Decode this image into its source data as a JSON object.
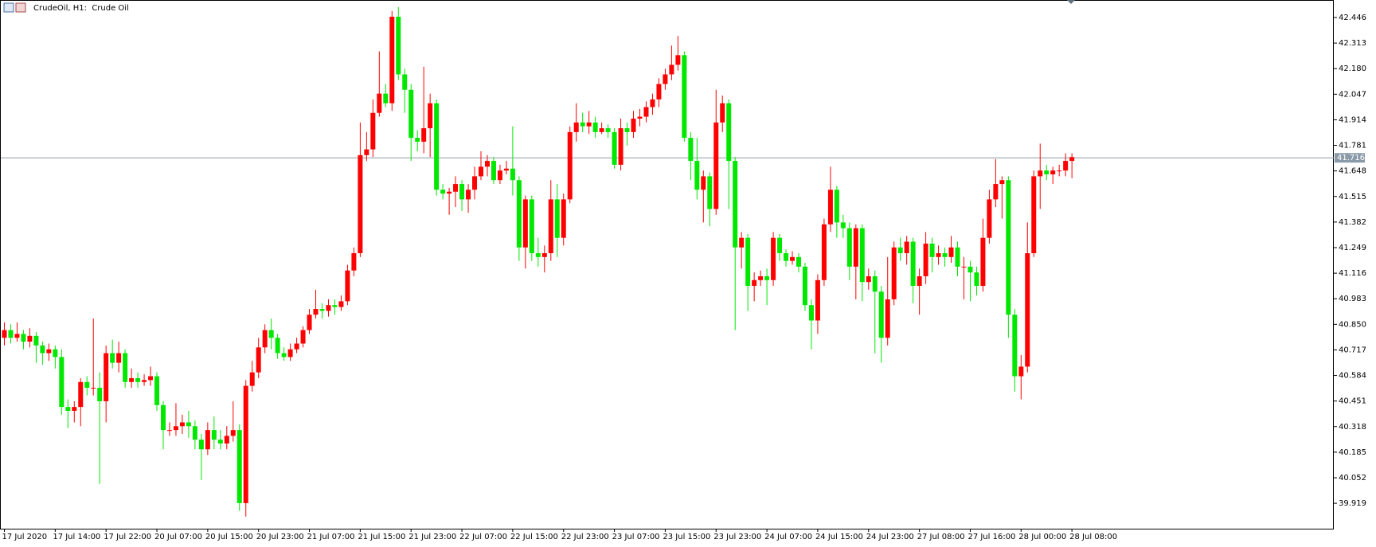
{
  "chart_data": {
    "type": "candlestick",
    "title": "CrudeOil, H1:  Crude Oil",
    "categories": [
      "17 Jul 2020",
      null,
      null,
      null,
      null,
      null,
      null,
      null,
      "17 Jul 14:00",
      null,
      null,
      null,
      null,
      null,
      null,
      null,
      "17 Jul 22:00",
      null,
      null,
      null,
      null,
      null,
      null,
      null,
      "20 Jul 07:00",
      null,
      null,
      null,
      null,
      null,
      null,
      null,
      "20 Jul 15:00",
      null,
      null,
      null,
      null,
      null,
      null,
      null,
      "20 Jul 23:00",
      null,
      null,
      null,
      null,
      null,
      null,
      null,
      "21 Jul 07:00",
      null,
      null,
      null,
      null,
      null,
      null,
      null,
      "21 Jul 15:00",
      null,
      null,
      null,
      null,
      null,
      null,
      null,
      "21 Jul 23:00",
      null,
      null,
      null,
      null,
      null,
      null,
      null,
      "22 Jul 07:00",
      null,
      null,
      null,
      null,
      null,
      null,
      null,
      "22 Jul 15:00",
      null,
      null,
      null,
      null,
      null,
      null,
      null,
      "22 Jul 23:00",
      null,
      null,
      null,
      null,
      null,
      null,
      null,
      "23 Jul 07:00",
      null,
      null,
      null,
      null,
      null,
      null,
      null,
      "23 Jul 15:00",
      null,
      null,
      null,
      null,
      null,
      null,
      null,
      "23 Jul 23:00",
      null,
      null,
      null,
      null,
      null,
      null,
      null,
      "24 Jul 07:00",
      null,
      null,
      null,
      null,
      null,
      null,
      null,
      "24 Jul 15:00",
      null,
      null,
      null,
      null,
      null,
      null,
      null,
      "24 Jul 23:00",
      null,
      null,
      null,
      null,
      null,
      null,
      null,
      "27 Jul 08:00",
      null,
      null,
      null,
      null,
      null,
      null,
      null,
      "27 Jul 16:00",
      null,
      null,
      null,
      null,
      null,
      null,
      null,
      "28 Jul 00:00",
      null,
      null,
      null,
      null,
      null,
      null,
      null,
      "28 Jul 08:00"
    ],
    "open": [
      40.78,
      40.82,
      40.78,
      40.8,
      40.76,
      40.79,
      40.74,
      40.7,
      40.72,
      40.68,
      40.42,
      40.4,
      40.42,
      40.55,
      40.52,
      40.52,
      40.45,
      40.7,
      40.65,
      40.7,
      40.55,
      40.57,
      40.55,
      40.56,
      40.58,
      40.43,
      40.3,
      40.3,
      40.32,
      40.34,
      40.32,
      40.25,
      40.2,
      40.3,
      40.25,
      40.23,
      40.27,
      40.3,
      39.92,
      40.53,
      40.6,
      40.73,
      40.82,
      40.78,
      40.7,
      40.68,
      40.72,
      40.75,
      40.82,
      40.9,
      40.93,
      40.92,
      40.95,
      40.94,
      40.97,
      41.13,
      41.22,
      41.73,
      41.76,
      41.95,
      42.05,
      42.0,
      42.45,
      42.15,
      42.07,
      41.82,
      41.8,
      41.87,
      42.0,
      41.55,
      41.53,
      41.54,
      41.58,
      41.5,
      41.55,
      41.62,
      41.67,
      41.7,
      41.6,
      41.65,
      41.66,
      41.6,
      41.25,
      41.5,
      41.22,
      41.2,
      41.22,
      41.5,
      41.3,
      41.5,
      41.85,
      41.9,
      41.88,
      41.9,
      41.85,
      41.87,
      41.85,
      41.68,
      41.87,
      41.85,
      41.92,
      41.93,
      41.98,
      42.02,
      42.1,
      42.15,
      42.2,
      42.25,
      41.82,
      41.7,
      41.55,
      41.62,
      41.45,
      41.9,
      42.0,
      41.7,
      41.25,
      41.3,
      41.05,
      41.08,
      41.1,
      41.08,
      41.3,
      41.22,
      41.18,
      41.2,
      41.15,
      40.95,
      40.87,
      41.08,
      41.37,
      41.55,
      41.38,
      41.35,
      41.15,
      41.35,
      41.07,
      41.1,
      41.02,
      40.78,
      40.98,
      41.25,
      41.22,
      41.28,
      41.05,
      41.1,
      41.27,
      41.2,
      41.22,
      41.2,
      41.25,
      41.15,
      41.15,
      41.12,
      41.05,
      41.3,
      41.5,
      41.58,
      41.6,
      40.9,
      40.58,
      40.63,
      41.22,
      41.62,
      41.65,
      41.63,
      41.65,
      41.65,
      41.7
    ],
    "high": [
      40.86,
      40.85,
      40.86,
      40.82,
      40.83,
      40.81,
      40.76,
      40.75,
      40.74,
      40.72,
      40.46,
      40.45,
      40.57,
      40.58,
      40.88,
      40.6,
      40.74,
      40.77,
      40.76,
      40.72,
      40.62,
      40.6,
      40.59,
      40.63,
      40.6,
      40.45,
      40.34,
      40.44,
      40.38,
      40.4,
      40.35,
      40.28,
      40.34,
      40.37,
      40.3,
      40.32,
      40.45,
      40.33,
      40.56,
      40.66,
      40.78,
      40.85,
      40.88,
      40.8,
      40.73,
      40.75,
      40.78,
      40.84,
      40.93,
      41.03,
      40.96,
      40.98,
      40.98,
      41.0,
      41.16,
      41.25,
      41.9,
      41.85,
      42.02,
      42.27,
      42.1,
      42.48,
      42.5,
      42.18,
      42.1,
      41.86,
      42.19,
      42.05,
      42.02,
      41.58,
      41.56,
      41.62,
      41.6,
      41.58,
      41.67,
      41.75,
      41.73,
      41.72,
      41.68,
      41.7,
      41.88,
      41.62,
      41.52,
      41.52,
      41.3,
      41.26,
      41.6,
      41.58,
      41.53,
      41.88,
      42.0,
      41.95,
      41.96,
      41.93,
      41.9,
      41.89,
      41.87,
      41.92,
      41.9,
      41.96,
      41.97,
      42.01,
      42.05,
      42.13,
      42.18,
      42.3,
      42.35,
      42.27,
      41.85,
      41.82,
      41.65,
      41.64,
      42.07,
      42.04,
      42.02,
      41.72,
      41.33,
      41.32,
      41.12,
      41.13,
      41.14,
      41.33,
      41.32,
      41.24,
      41.23,
      41.22,
      41.17,
      40.98,
      41.11,
      41.4,
      41.67,
      41.57,
      41.42,
      41.38,
      41.37,
      41.37,
      41.14,
      41.13,
      41.05,
      41.2,
      41.28,
      41.3,
      41.31,
      41.3,
      41.14,
      41.33,
      41.3,
      41.26,
      41.25,
      41.31,
      41.28,
      41.2,
      41.18,
      41.15,
      41.4,
      41.55,
      41.71,
      41.62,
      41.62,
      40.93,
      40.69,
      41.38,
      41.65,
      41.79,
      41.68,
      41.67,
      41.68,
      41.74,
      41.74
    ],
    "low": [
      40.74,
      40.75,
      40.76,
      40.72,
      40.73,
      40.65,
      40.64,
      40.66,
      40.62,
      40.38,
      40.31,
      40.34,
      40.32,
      40.48,
      40.48,
      40.02,
      40.34,
      40.62,
      40.6,
      40.52,
      40.52,
      40.52,
      40.53,
      40.53,
      40.4,
      40.2,
      40.27,
      40.27,
      40.28,
      40.26,
      40.2,
      40.04,
      40.17,
      40.2,
      40.2,
      40.2,
      40.24,
      39.88,
      39.85,
      40.5,
      40.57,
      40.7,
      40.72,
      40.67,
      40.66,
      40.66,
      40.7,
      40.73,
      40.8,
      40.88,
      40.88,
      40.89,
      40.9,
      40.92,
      40.95,
      41.1,
      41.2,
      41.7,
      41.72,
      41.93,
      41.98,
      41.96,
      42.12,
      41.95,
      41.7,
      41.75,
      41.74,
      41.72,
      41.52,
      41.5,
      41.42,
      41.46,
      41.44,
      41.43,
      41.5,
      41.6,
      41.62,
      41.58,
      41.58,
      41.63,
      41.52,
      41.18,
      41.14,
      41.18,
      41.15,
      41.12,
      41.18,
      41.2,
      41.26,
      41.48,
      41.8,
      41.85,
      41.84,
      41.82,
      41.84,
      41.82,
      41.66,
      41.65,
      41.78,
      41.82,
      41.88,
      41.9,
      41.94,
      41.98,
      42.07,
      42.12,
      42.17,
      41.8,
      41.6,
      41.5,
      41.38,
      41.36,
      41.42,
      41.85,
      41.45,
      40.82,
      41.14,
      40.92,
      40.97,
      41.05,
      40.95,
      41.05,
      41.18,
      41.15,
      41.16,
      41.12,
      40.92,
      40.72,
      40.8,
      41.05,
      41.33,
      41.3,
      41.3,
      41.08,
      40.98,
      40.97,
      41.03,
      40.7,
      40.65,
      40.74,
      40.95,
      41.18,
      41.16,
      40.96,
      40.9,
      41.06,
      41.12,
      41.16,
      41.15,
      41.17,
      41.1,
      40.98,
      40.97,
      41.0,
      41.02,
      41.27,
      41.46,
      41.4,
      40.78,
      40.5,
      40.46,
      40.6,
      41.2,
      41.45,
      41.6,
      41.58,
      41.62,
      41.62,
      41.61
    ],
    "close": [
      40.82,
      40.78,
      40.8,
      40.76,
      40.79,
      40.74,
      40.7,
      40.72,
      40.68,
      40.42,
      40.4,
      40.42,
      40.55,
      40.52,
      40.52,
      40.45,
      40.7,
      40.65,
      40.7,
      40.55,
      40.57,
      40.55,
      40.56,
      40.58,
      40.43,
      40.3,
      40.3,
      40.32,
      40.34,
      40.32,
      40.25,
      40.2,
      40.3,
      40.25,
      40.23,
      40.27,
      40.3,
      39.92,
      40.53,
      40.6,
      40.73,
      40.82,
      40.78,
      40.7,
      40.68,
      40.72,
      40.75,
      40.82,
      40.9,
      40.93,
      40.92,
      40.95,
      40.94,
      40.97,
      41.13,
      41.22,
      41.73,
      41.76,
      41.95,
      42.05,
      42.0,
      42.45,
      42.15,
      42.07,
      41.82,
      41.8,
      41.87,
      42.0,
      41.55,
      41.53,
      41.54,
      41.58,
      41.5,
      41.55,
      41.62,
      41.67,
      41.7,
      41.6,
      41.65,
      41.66,
      41.6,
      41.25,
      41.5,
      41.22,
      41.2,
      41.22,
      41.5,
      41.3,
      41.5,
      41.85,
      41.9,
      41.88,
      41.9,
      41.85,
      41.87,
      41.85,
      41.68,
      41.87,
      41.85,
      41.92,
      41.93,
      41.98,
      42.02,
      42.1,
      42.15,
      42.2,
      42.25,
      41.82,
      41.7,
      41.55,
      41.62,
      41.45,
      41.9,
      42.0,
      41.7,
      41.25,
      41.3,
      41.05,
      41.08,
      41.1,
      41.08,
      41.3,
      41.22,
      41.18,
      41.2,
      41.15,
      40.95,
      40.87,
      41.08,
      41.37,
      41.55,
      41.38,
      41.35,
      41.15,
      41.35,
      41.07,
      41.1,
      41.02,
      40.78,
      40.98,
      41.25,
      41.22,
      41.28,
      41.05,
      41.1,
      41.27,
      41.2,
      41.22,
      41.2,
      41.25,
      41.15,
      41.15,
      41.12,
      41.05,
      41.3,
      41.5,
      41.58,
      41.6,
      40.9,
      40.58,
      40.63,
      41.22,
      41.62,
      41.65,
      41.63,
      41.65,
      41.65,
      41.7,
      41.72
    ],
    "up_color": "#ff0000",
    "down_color": "#00e800",
    "ylim": [
      39.787,
      42.537
    ],
    "yticks": [
      42.446,
      42.313,
      {
        "value": 42.18,
        "label": "42.180"
      },
      42.047,
      41.914,
      41.781,
      41.648,
      41.515,
      41.382,
      41.249,
      41.116,
      40.983,
      {
        "value": 40.85,
        "label": "40.850"
      },
      40.717,
      40.584,
      40.451,
      40.318,
      40.185,
      40.052,
      39.919
    ],
    "last_price": 41.716,
    "last_price_color": "#8a9aa8"
  }
}
